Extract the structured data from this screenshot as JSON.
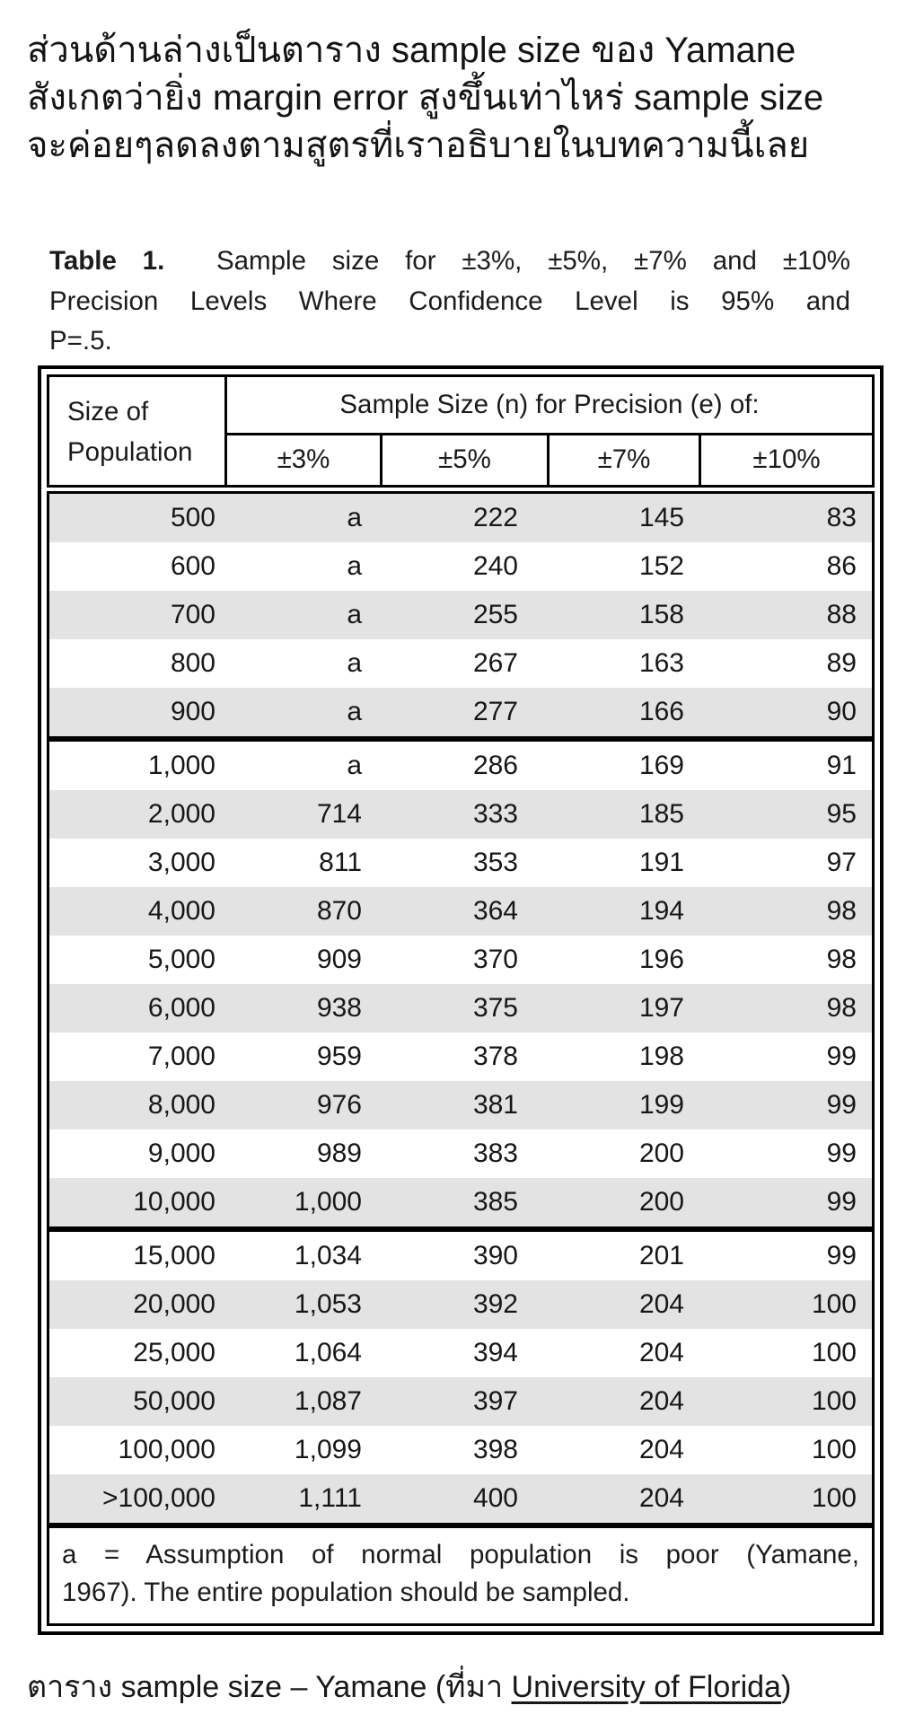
{
  "intro": {
    "lines": [
      "ส่วนด้านล่างเป็นตาราง sample size ของ Yamane",
      "สังเกตว่ายิ่ง margin error สูงขึ้นเท่าไหร่ sample size",
      "จะค่อยๆลดลงตามสูตรที่เราอธิบายในบทความนี้เลย"
    ]
  },
  "table": {
    "title": {
      "bold": "Table 1.",
      "line1_rest": "Sample size for ±3%, ±5%, ±7% and ±10%",
      "line2": "Precision Levels Where Confidence Level is 95% and",
      "line3": "P=.5."
    },
    "header": {
      "row_label_line1": "Size of",
      "row_label_line2": "Population",
      "span_label": "Sample Size (n) for Precision (e) of:",
      "columns": [
        "±3%",
        "±5%",
        "±7%",
        "±10%"
      ]
    },
    "groups": [
      {
        "rows": [
          [
            "500",
            "a",
            "222",
            "145",
            "83"
          ],
          [
            "600",
            "a",
            "240",
            "152",
            "86"
          ],
          [
            "700",
            "a",
            "255",
            "158",
            "88"
          ],
          [
            "800",
            "a",
            "267",
            "163",
            "89"
          ],
          [
            "900",
            "a",
            "277",
            "166",
            "90"
          ]
        ]
      },
      {
        "rows": [
          [
            "1,000",
            "a",
            "286",
            "169",
            "91"
          ],
          [
            "2,000",
            "714",
            "333",
            "185",
            "95"
          ],
          [
            "3,000",
            "811",
            "353",
            "191",
            "97"
          ],
          [
            "4,000",
            "870",
            "364",
            "194",
            "98"
          ],
          [
            "5,000",
            "909",
            "370",
            "196",
            "98"
          ],
          [
            "6,000",
            "938",
            "375",
            "197",
            "98"
          ],
          [
            "7,000",
            "959",
            "378",
            "198",
            "99"
          ],
          [
            "8,000",
            "976",
            "381",
            "199",
            "99"
          ],
          [
            "9,000",
            "989",
            "383",
            "200",
            "99"
          ],
          [
            "10,000",
            "1,000",
            "385",
            "200",
            "99"
          ]
        ]
      },
      {
        "rows": [
          [
            "15,000",
            "1,034",
            "390",
            "201",
            "99"
          ],
          [
            "20,000",
            "1,053",
            "392",
            "204",
            "100"
          ],
          [
            "25,000",
            "1,064",
            "394",
            "204",
            "100"
          ],
          [
            "50,000",
            "1,087",
            "397",
            "204",
            "100"
          ],
          [
            "100,000",
            "1,099",
            "398",
            "204",
            "100"
          ],
          [
            ">100,000",
            "1,111",
            "400",
            "204",
            "100"
          ]
        ]
      }
    ],
    "footnote": {
      "line1": "a = Assumption of normal population is poor (Yamane,",
      "line2": "1967).  The entire population should be sampled."
    }
  },
  "caption": {
    "prefix": "ตาราง sample size – Yamane (ที่มา ",
    "link": "University of Florida",
    "suffix": ")"
  },
  "colors": {
    "stripe": "#e3e3e3",
    "border": "#000000",
    "text": "#1a1a1a"
  }
}
